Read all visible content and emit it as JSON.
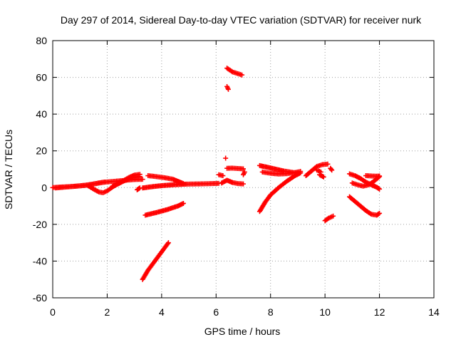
{
  "chart_data": {
    "type": "scatter",
    "title": "Day 297 of 2014, Sidereal Day-to-day VTEC variation (SDTVAR) for receiver nurk",
    "xlabel": "GPS time / hours",
    "ylabel": "SDTVAR / TECUs",
    "xlim": [
      0,
      14
    ],
    "ylim": [
      -60,
      80
    ],
    "xticks": [
      0,
      2,
      4,
      6,
      8,
      10,
      12,
      14
    ],
    "yticks": [
      -60,
      -40,
      -20,
      0,
      20,
      40,
      60,
      80
    ],
    "grid": true,
    "marker": "+",
    "color": "#ff0000",
    "series": [
      {
        "values": [
          [
            0.0,
            0.0
          ],
          [
            0.3,
            0.3
          ],
          [
            0.6,
            0.5
          ],
          [
            0.9,
            0.8
          ],
          [
            1.2,
            1.2
          ],
          [
            1.5,
            2.0
          ],
          [
            1.8,
            2.8
          ],
          [
            2.1,
            3.2
          ],
          [
            2.4,
            3.6
          ],
          [
            2.7,
            4.0
          ],
          [
            3.0,
            4.4
          ],
          [
            3.3,
            4.5
          ]
        ]
      },
      {
        "values": [
          [
            0.1,
            -0.2
          ],
          [
            0.4,
            0.2
          ],
          [
            0.7,
            0.6
          ],
          [
            1.0,
            1.0
          ],
          [
            1.3,
            1.5
          ],
          [
            1.6,
            2.2
          ],
          [
            1.9,
            3.0
          ]
        ]
      },
      {
        "values": [
          [
            1.3,
            1.0
          ],
          [
            1.5,
            -0.8
          ],
          [
            1.7,
            -2.4
          ],
          [
            1.85,
            -2.8
          ],
          [
            2.0,
            -1.8
          ],
          [
            2.2,
            0.3
          ],
          [
            2.4,
            2.2
          ],
          [
            2.6,
            3.8
          ],
          [
            2.8,
            5.5
          ],
          [
            3.0,
            6.8
          ],
          [
            3.2,
            7.2
          ]
        ]
      },
      {
        "values": [
          [
            2.2,
            0.8
          ],
          [
            2.4,
            2.0
          ],
          [
            2.6,
            3.5
          ],
          [
            2.8,
            4.8
          ],
          [
            3.0,
            5.6
          ],
          [
            3.2,
            6.0
          ]
        ]
      },
      {
        "values": [
          [
            3.1,
            -1.2
          ],
          [
            3.2,
            -0.2
          ]
        ]
      },
      {
        "values": [
          [
            3.5,
            6.5
          ],
          [
            3.8,
            6.0
          ],
          [
            4.1,
            5.4
          ],
          [
            4.4,
            4.6
          ],
          [
            4.6,
            3.4
          ],
          [
            4.8,
            2.2
          ]
        ]
      },
      {
        "values": [
          [
            3.3,
            -0.2
          ],
          [
            3.7,
            0.6
          ],
          [
            4.1,
            1.2
          ],
          [
            4.5,
            1.6
          ],
          [
            4.9,
            1.9
          ],
          [
            5.3,
            2.0
          ],
          [
            5.7,
            2.1
          ],
          [
            6.1,
            2.3
          ]
        ]
      },
      {
        "values": [
          [
            3.3,
            -50
          ],
          [
            3.5,
            -45
          ],
          [
            3.7,
            -41
          ],
          [
            3.9,
            -37
          ],
          [
            4.1,
            -33
          ],
          [
            4.25,
            -30
          ]
        ]
      },
      {
        "values": [
          [
            3.4,
            -15
          ],
          [
            3.8,
            -13.6
          ],
          [
            4.2,
            -12
          ],
          [
            4.6,
            -10
          ],
          [
            4.8,
            -8.6
          ]
        ]
      },
      {
        "values": [
          [
            6.1,
            7.0
          ],
          [
            6.25,
            6.5
          ]
        ]
      },
      {
        "values": [
          [
            6.2,
            2.5
          ],
          [
            6.4,
            4.0
          ],
          [
            6.6,
            2.8
          ],
          [
            6.8,
            2.2
          ],
          [
            7.0,
            2.0
          ]
        ]
      },
      {
        "values": [
          [
            6.4,
            10.5
          ],
          [
            6.6,
            10.6
          ],
          [
            6.8,
            10.4
          ],
          [
            7.0,
            10.2
          ]
        ]
      },
      {
        "values": [
          [
            6.35,
            16.0
          ]
        ]
      },
      {
        "values": [
          [
            6.4,
            55
          ],
          [
            6.45,
            53.5
          ]
        ]
      },
      {
        "values": [
          [
            6.4,
            65
          ],
          [
            6.6,
            63
          ],
          [
            6.8,
            62
          ],
          [
            6.95,
            61.3
          ]
        ]
      },
      {
        "values": [
          [
            7.0,
            7.0
          ],
          [
            7.05,
            8.5
          ]
        ]
      },
      {
        "values": [
          [
            7.6,
            -13
          ],
          [
            7.8,
            -8
          ],
          [
            8.0,
            -4
          ],
          [
            8.3,
            0
          ],
          [
            8.6,
            3.5
          ],
          [
            8.9,
            6.5
          ],
          [
            9.1,
            8.0
          ]
        ]
      },
      {
        "values": [
          [
            7.6,
            12
          ],
          [
            7.9,
            11
          ],
          [
            8.2,
            10
          ],
          [
            8.5,
            9
          ],
          [
            8.8,
            8.3
          ],
          [
            9.0,
            7.8
          ]
        ]
      },
      {
        "values": [
          [
            7.7,
            8.5
          ],
          [
            8.0,
            7.8
          ],
          [
            8.3,
            7.4
          ],
          [
            8.6,
            7.6
          ],
          [
            8.9,
            8.2
          ],
          [
            9.1,
            8.8
          ]
        ]
      },
      {
        "values": [
          [
            9.3,
            6.5
          ],
          [
            9.5,
            9.0
          ],
          [
            9.7,
            11.5
          ],
          [
            9.9,
            12.5
          ],
          [
            10.1,
            12.8
          ]
        ]
      },
      {
        "values": [
          [
            9.7,
            9.5
          ],
          [
            9.85,
            8.5
          ]
        ]
      },
      {
        "values": [
          [
            9.8,
            7.0
          ],
          [
            9.95,
            5.8
          ]
        ]
      },
      {
        "values": [
          [
            10.2,
            10.5
          ],
          [
            10.25,
            9.5
          ]
        ]
      },
      {
        "values": [
          [
            10.0,
            -18
          ],
          [
            10.15,
            -16.5
          ],
          [
            10.3,
            -15.5
          ]
        ]
      },
      {
        "values": [
          [
            10.9,
            -5
          ],
          [
            11.1,
            -7.5
          ],
          [
            11.3,
            -10
          ],
          [
            11.5,
            -12.5
          ],
          [
            11.7,
            -14.5
          ],
          [
            11.9,
            -15
          ],
          [
            12.0,
            -14
          ]
        ]
      },
      {
        "values": [
          [
            10.9,
            7.5
          ],
          [
            11.1,
            6.5
          ],
          [
            11.3,
            5.0
          ],
          [
            11.5,
            3.0
          ],
          [
            11.7,
            1.5
          ],
          [
            11.9,
            0.2
          ],
          [
            12.0,
            -0.8
          ]
        ]
      },
      {
        "values": [
          [
            11.0,
            2.5
          ],
          [
            11.2,
            1.5
          ],
          [
            11.4,
            0.8
          ],
          [
            11.6,
            1.5
          ],
          [
            11.8,
            3.5
          ],
          [
            12.0,
            6.0
          ]
        ]
      },
      {
        "values": [
          [
            11.5,
            6.5
          ],
          [
            11.7,
            6.3
          ],
          [
            11.9,
            6.2
          ],
          [
            12.0,
            6.3
          ]
        ]
      }
    ]
  }
}
